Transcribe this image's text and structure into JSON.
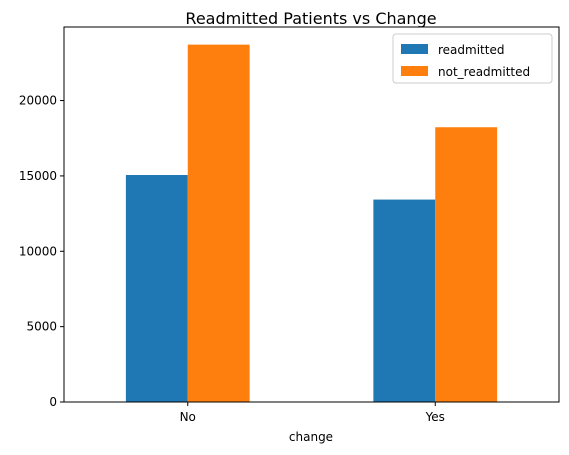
{
  "chart_data": {
    "type": "bar",
    "title": "Readmitted Patients vs Change",
    "xlabel": "change",
    "ylabel": "",
    "categories": [
      "No",
      "Yes"
    ],
    "series": [
      {
        "name": "readmitted",
        "values": [
          15060,
          13430
        ],
        "color": "#1f77b4"
      },
      {
        "name": "not_readmitted",
        "values": [
          23710,
          18230
        ],
        "color": "#ff7f0e"
      }
    ],
    "ylim": [
      0,
      24880
    ],
    "yticks": [
      0,
      5000,
      10000,
      15000,
      20000
    ],
    "grid": false,
    "legend": "top-right"
  }
}
